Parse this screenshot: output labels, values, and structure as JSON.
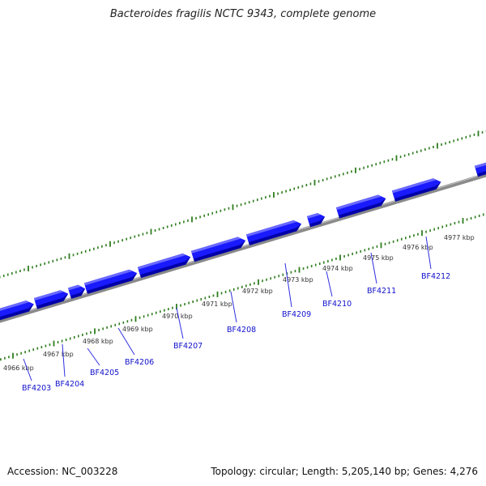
{
  "title": "Bacteroides fragilis NCTC 9343, complete genome",
  "footer": {
    "accession": "Accession: NC_003228",
    "summary": "Topology: circular; Length: 5,205,140 bp; Genes: 4,276"
  },
  "colors": {
    "backbone": "#8a8a8a",
    "gene_fill": "#1a1aff",
    "gene_shadow": "#0000a8",
    "tick": "#2e7d1e",
    "gene_label": "#1010cc",
    "leader": "#3030e0"
  },
  "ticks": {
    "unit": "kbp",
    "labels": [
      "4966 kbp",
      "4967 kbp",
      "4968 kbp",
      "4969 kbp",
      "4970 kbp",
      "4971 kbp",
      "4972 kbp",
      "4973 kbp",
      "4974 kbp",
      "4975 kbp",
      "4976 kbp",
      "4977 kbp"
    ]
  },
  "genes": {
    "labels": [
      "BF4203",
      "BF4204",
      "BF4205",
      "BF4206",
      "BF4207",
      "BF4208",
      "BF4209",
      "BF4210",
      "BF4211",
      "BF4212"
    ]
  }
}
